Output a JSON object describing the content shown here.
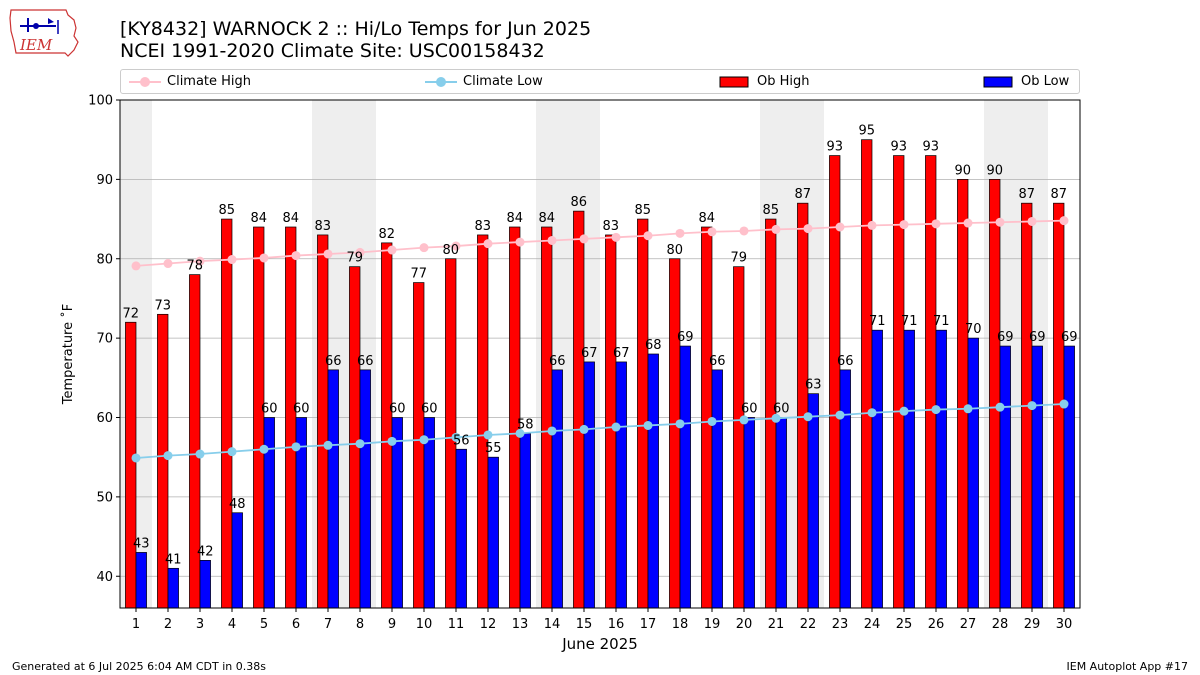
{
  "header": {
    "title_line1": "[KY8432] WARNOCK 2 :: Hi/Lo Temps for Jun 2025",
    "title_line2": "NCEI 1991-2020 Climate Site: USC00158432",
    "logo_text": "IEM"
  },
  "footer": {
    "left": "Generated at 6 Jul 2025 6:04 AM CDT in 0.38s",
    "right": "IEM Autoplot App #17"
  },
  "legend": [
    {
      "label": "Climate High",
      "kind": "line",
      "color": "#ffc0cb"
    },
    {
      "label": "Climate Low",
      "kind": "line",
      "color": "#87ceeb"
    },
    {
      "label": "Ob High",
      "kind": "bar",
      "color": "#ff0000"
    },
    {
      "label": "Ob Low",
      "kind": "bar",
      "color": "#0000ff"
    }
  ],
  "colors": {
    "ob_high": "#ff0000",
    "ob_low": "#0000ff",
    "climate_high": "#ffc0cb",
    "climate_low": "#87ceeb",
    "weekend_shade": "#eeeeee",
    "grid": "#b0b0b0"
  },
  "chart_data": {
    "type": "bar",
    "xlabel": "June 2025",
    "ylabel": "Temperature $^\\circ$F",
    "ylabel_display": "Temperature ˚F",
    "ylim": [
      36,
      100
    ],
    "yticks": [
      40,
      50,
      60,
      70,
      80,
      90,
      100
    ],
    "grid": true,
    "legend_position": "top",
    "categories": [
      "1",
      "2",
      "3",
      "4",
      "5",
      "6",
      "7",
      "8",
      "9",
      "10",
      "11",
      "12",
      "13",
      "14",
      "15",
      "16",
      "17",
      "18",
      "19",
      "20",
      "21",
      "22",
      "23",
      "24",
      "25",
      "26",
      "27",
      "28",
      "29",
      "30"
    ],
    "weekend_days": [
      "1",
      "7",
      "8",
      "14",
      "15",
      "21",
      "22",
      "28",
      "29"
    ],
    "series": [
      {
        "name": "Ob High",
        "kind": "bar",
        "values": [
          72,
          73,
          78,
          85,
          84,
          84,
          83,
          79,
          82,
          77,
          80,
          83,
          84,
          84,
          86,
          83,
          85,
          80,
          84,
          79,
          85,
          87,
          93,
          95,
          93,
          93,
          90,
          90,
          87,
          87
        ]
      },
      {
        "name": "Ob Low",
        "kind": "bar",
        "values": [
          43,
          41,
          42,
          48,
          60,
          60,
          66,
          66,
          60,
          60,
          56,
          55,
          58,
          66,
          67,
          67,
          68,
          69,
          66,
          60,
          60,
          63,
          66,
          71,
          71,
          71,
          70,
          69,
          69,
          69
        ]
      },
      {
        "name": "Climate High",
        "kind": "line",
        "values": [
          79.1,
          79.4,
          79.7,
          79.9,
          80.1,
          80.4,
          80.6,
          80.8,
          81.1,
          81.4,
          81.6,
          81.9,
          82.1,
          82.3,
          82.5,
          82.7,
          82.9,
          83.2,
          83.4,
          83.5,
          83.7,
          83.8,
          84.0,
          84.2,
          84.3,
          84.4,
          84.5,
          84.6,
          84.7,
          84.8
        ]
      },
      {
        "name": "Climate Low",
        "kind": "line",
        "values": [
          54.9,
          55.2,
          55.4,
          55.7,
          56.0,
          56.3,
          56.5,
          56.7,
          57.0,
          57.2,
          57.5,
          57.8,
          58.0,
          58.3,
          58.5,
          58.8,
          59.0,
          59.2,
          59.5,
          59.7,
          59.9,
          60.1,
          60.3,
          60.6,
          60.8,
          61.0,
          61.1,
          61.3,
          61.5,
          61.7
        ]
      }
    ]
  }
}
